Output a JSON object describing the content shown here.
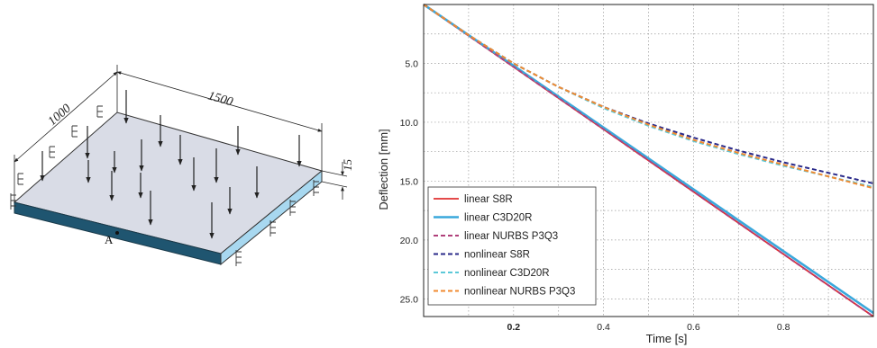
{
  "diagram": {
    "dim_length": "1500",
    "dim_width": "1000",
    "dim_thickness": "15",
    "point_label": "A"
  },
  "chart_data": {
    "type": "line",
    "xlabel": "Time [s]",
    "ylabel": "Deflection [mm]",
    "xlim": [
      0,
      1
    ],
    "ylim": [
      0,
      26.5
    ],
    "y_inverted": true,
    "grid": true,
    "grid_style": "dotted",
    "legend_position": "bottom-left",
    "x_ticks": [
      0.2,
      0.4,
      0.6,
      0.8
    ],
    "x_tick_labels": [
      "0.2",
      "0.4",
      "0.6",
      "0.8"
    ],
    "y_ticks": [
      5,
      10,
      15,
      20,
      25
    ],
    "y_tick_labels": [
      "5.0",
      "10.0",
      "15.0",
      "20.0",
      "25.0"
    ],
    "series": [
      {
        "name": "linear S8R",
        "color": "#e03030",
        "dash": "solid",
        "x": [
          0,
          0.2,
          0.4,
          0.6,
          0.8,
          1.0
        ],
        "y": [
          0,
          5.3,
          10.6,
          15.9,
          21.2,
          26.5
        ]
      },
      {
        "name": "linear C3D20R",
        "color": "#3aa8dc",
        "dash": "solid",
        "x": [
          0,
          0.2,
          0.4,
          0.6,
          0.8,
          1.0
        ],
        "y": [
          0,
          5.2,
          10.45,
          15.7,
          20.95,
          26.2
        ]
      },
      {
        "name": "linear NURBS P3Q3",
        "color": "#b0407a",
        "dash": "dashed",
        "x": [
          0,
          0.2,
          0.4,
          0.6,
          0.8,
          1.0
        ],
        "y": [
          0,
          5.3,
          10.6,
          15.9,
          21.2,
          26.5
        ]
      },
      {
        "name": "nonlinear S8R",
        "color": "#2a2a8a",
        "dash": "dashed",
        "x": [
          0,
          0.1,
          0.2,
          0.3,
          0.4,
          0.5,
          0.6,
          0.7,
          0.8,
          0.9,
          1.0
        ],
        "y": [
          0,
          2.6,
          5.0,
          7.0,
          8.7,
          10.1,
          11.3,
          12.4,
          13.4,
          14.3,
          15.2
        ]
      },
      {
        "name": "nonlinear C3D20R",
        "color": "#5cc8d8",
        "dash": "dashed",
        "x": [
          0,
          0.1,
          0.2,
          0.3,
          0.4,
          0.5,
          0.6,
          0.7,
          0.8,
          0.9,
          1.0
        ],
        "y": [
          0,
          2.6,
          5.0,
          7.0,
          8.8,
          10.3,
          11.6,
          12.7,
          13.7,
          14.6,
          15.5
        ]
      },
      {
        "name": "nonlinear NURBS P3Q3",
        "color": "#f08a30",
        "dash": "dashed",
        "x": [
          0,
          0.1,
          0.2,
          0.3,
          0.4,
          0.5,
          0.6,
          0.7,
          0.8,
          0.9,
          1.0
        ],
        "y": [
          0,
          2.6,
          5.0,
          7.0,
          8.7,
          10.2,
          11.5,
          12.6,
          13.6,
          14.6,
          15.6
        ]
      }
    ]
  }
}
